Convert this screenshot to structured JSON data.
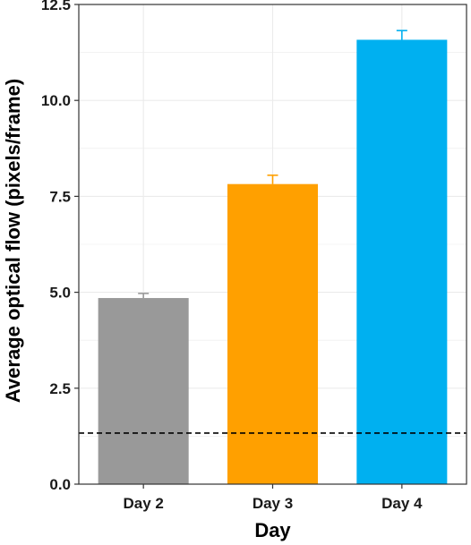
{
  "chart_data": {
    "type": "bar",
    "categories": [
      "Day 2",
      "Day 3",
      "Day 4"
    ],
    "values": [
      4.85,
      7.82,
      11.58
    ],
    "error_upper": [
      4.97,
      8.05,
      11.82
    ],
    "colors": [
      "#999999",
      "#FFA000",
      "#00B0F0"
    ],
    "reference_line": {
      "y": 1.33,
      "style": "dashed",
      "color": "#000000"
    },
    "xlabel": "Day",
    "ylabel": "Average optical flow (pixels/frame)",
    "ylim": [
      0,
      12.5
    ],
    "yticks": [
      "0.0",
      "2.5",
      "5.0",
      "7.5",
      "10.0",
      "12.5"
    ],
    "grid": true,
    "legend": "none"
  }
}
